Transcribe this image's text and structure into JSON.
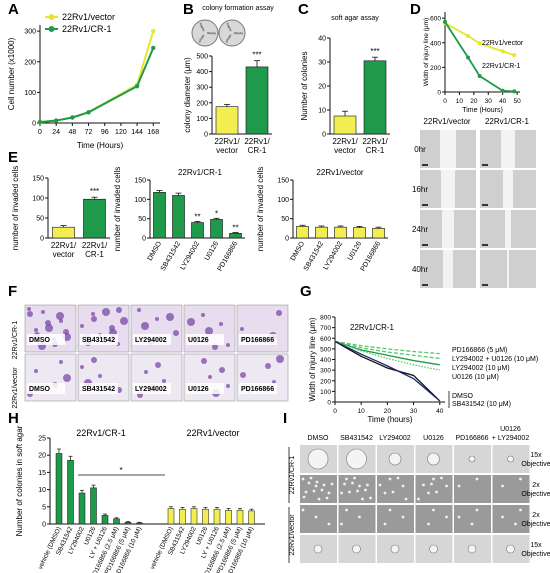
{
  "colors": {
    "yellow": "#f2ee52",
    "yellow_line": "#e8e430",
    "green": "#1f9a4a",
    "light_green": "#5cc66e",
    "dark_blue": "#1a2a6c",
    "black": "#111111",
    "purple_stain": "#7a4aa8",
    "purple_bg": "#e8dcef",
    "gray_bg": "#cfcfcf"
  },
  "panel_letters": [
    "A",
    "B",
    "C",
    "D",
    "E",
    "F",
    "G",
    "H",
    "I"
  ],
  "chart_data": [
    {
      "panel": "A",
      "type": "line",
      "xlabel": "Time (Hours)",
      "ylabel": "Cell number (x1000)",
      "xticks": [
        0,
        24,
        48,
        72,
        96,
        120,
        144,
        168
      ],
      "yticks": [
        0,
        100,
        200,
        300
      ],
      "xlim": [
        0,
        178
      ],
      "ylim": [
        0,
        320
      ],
      "series": [
        {
          "name": "22Rv1/vector",
          "color": "yellow",
          "x": [
            0,
            24,
            48,
            72,
            144,
            168
          ],
          "y": [
            3,
            8,
            18,
            35,
            125,
            300
          ]
        },
        {
          "name": "22Rv1/CR-1",
          "color": "green",
          "x": [
            0,
            24,
            48,
            72,
            144,
            168
          ],
          "y": [
            3,
            8,
            18,
            35,
            120,
            245
          ]
        }
      ]
    },
    {
      "panel": "B",
      "type": "bar",
      "title": "colony formation assay",
      "ylabel": "colony diameter (μm)",
      "yticks": [
        0,
        100,
        200,
        300,
        400,
        500
      ],
      "ylim": [
        0,
        500
      ],
      "categories": [
        "22Rv1/ vector",
        "22Rv1/ CR-1"
      ],
      "values": [
        175,
        430
      ],
      "errors": [
        15,
        40
      ],
      "colors": [
        "yellow",
        "green"
      ],
      "annotation": "***"
    },
    {
      "panel": "C",
      "type": "bar",
      "title": "soft agar assay",
      "ylabel": "Number of colonies",
      "yticks": [
        0,
        10,
        20,
        30,
        40
      ],
      "ylim": [
        0,
        40
      ],
      "categories": [
        "22Rv1/ vector",
        "22Rv1/ CR-1"
      ],
      "values": [
        7.5,
        30.5
      ],
      "errors": [
        2,
        1.5
      ],
      "colors": [
        "yellow",
        "green"
      ],
      "annotation": "***"
    },
    {
      "panel": "D",
      "type": "line",
      "xlabel": "Time (Hours)",
      "ylabel": "Width of injury line (μm)",
      "xticks": [
        0,
        10,
        20,
        30,
        40,
        50
      ],
      "yticks": [
        0,
        200,
        400,
        600
      ],
      "xlim": [
        0,
        52
      ],
      "ylim": [
        0,
        650
      ],
      "series": [
        {
          "name": "22Rv1/vector",
          "color": "yellow",
          "x": [
            0,
            16,
            24,
            40,
            48
          ],
          "y": [
            560,
            455,
            395,
            330,
            300
          ]
        },
        {
          "name": "22Rv1/CR-1",
          "color": "green",
          "x": [
            0,
            16,
            24,
            40,
            48
          ],
          "y": [
            570,
            280,
            130,
            10,
            5
          ]
        }
      ],
      "image_columns": [
        "22Rv1/vector",
        "22Rv1/CR-1"
      ],
      "image_rows": [
        "0hr",
        "16hr",
        "24hr",
        "40hr"
      ]
    },
    {
      "panel": "E1",
      "type": "bar",
      "ylabel": "number of invaded cells",
      "yticks": [
        0,
        50,
        100,
        150
      ],
      "ylim": [
        0,
        150
      ],
      "categories": [
        "22Rv1/ vector",
        "22Rv1/ CR-1"
      ],
      "values": [
        27,
        97
      ],
      "errors": [
        4,
        5
      ],
      "colors": [
        "yellow",
        "green"
      ],
      "annotation": "***"
    },
    {
      "panel": "E2",
      "type": "bar",
      "title": "22Rv1/CR-1",
      "ylabel": "number of invaded cells",
      "yticks": [
        0,
        50,
        100,
        150
      ],
      "ylim": [
        0,
        150
      ],
      "categories": [
        "DMSO",
        "SB431542",
        "LY294002",
        "U0126",
        "PD166866"
      ],
      "values": [
        118,
        110,
        40,
        48,
        12
      ],
      "errors": [
        5,
        6,
        3,
        3,
        2
      ],
      "annotations": [
        "",
        "",
        "**",
        "*",
        "**"
      ],
      "color": "green"
    },
    {
      "panel": "E3",
      "type": "bar",
      "title": "22Rv1/vector",
      "ylabel": "number of invaded cells",
      "yticks": [
        0,
        50,
        100,
        150
      ],
      "ylim": [
        0,
        150
      ],
      "categories": [
        "DMSO",
        "SB431542",
        "LY294002",
        "U0126",
        "PD166866"
      ],
      "values": [
        30,
        28,
        28,
        27,
        25
      ],
      "errors": [
        3,
        3,
        3,
        3,
        3
      ],
      "color": "yellow"
    },
    {
      "panel": "G",
      "type": "line",
      "title": "22Rv1/CR-1",
      "xlabel": "Time (hours)",
      "ylabel": "Width of injury line (μm)",
      "xticks": [
        0,
        10,
        20,
        30,
        40
      ],
      "yticks": [
        0,
        100,
        200,
        300,
        400,
        500,
        600,
        700,
        800
      ],
      "xlim": [
        0,
        42
      ],
      "ylim": [
        0,
        800
      ],
      "series": [
        {
          "name": "PD166866 (5 μM)",
          "color": "light_green",
          "dash": "dashed",
          "x": [
            0,
            10,
            20,
            30,
            40
          ],
          "y": [
            570,
            530,
            500,
            475,
            455
          ]
        },
        {
          "name": "LY294002 + U0126 (10 μM)",
          "color": "light_green",
          "dash": "dashed",
          "x": [
            0,
            10,
            20,
            30,
            40
          ],
          "y": [
            570,
            510,
            470,
            440,
            410
          ]
        },
        {
          "name": "LY294002 (10 μM)",
          "color": "green",
          "dash": "solid",
          "x": [
            0,
            10,
            20,
            30,
            40
          ],
          "y": [
            570,
            490,
            440,
            390,
            350
          ]
        },
        {
          "name": "U0126 (10 μM)",
          "color": "light_green",
          "dash": "dotted",
          "x": [
            0,
            10,
            20,
            30,
            40
          ],
          "y": [
            570,
            480,
            410,
            350,
            300
          ]
        },
        {
          "name": "DMSO",
          "color": "black",
          "dash": "solid",
          "x": [
            0,
            10,
            20,
            30,
            40
          ],
          "y": [
            570,
            430,
            320,
            250,
            10
          ]
        },
        {
          "name": "SB431542 (10 μM)",
          "color": "dark_blue",
          "dash": "solid",
          "x": [
            0,
            10,
            20,
            30,
            40
          ],
          "y": [
            570,
            450,
            340,
            220,
            10
          ]
        }
      ]
    },
    {
      "panel": "H",
      "type": "bar",
      "ylabel": "Number of colonies in soft agar",
      "yticks": [
        0,
        5,
        10,
        15,
        20,
        25
      ],
      "ylim": [
        0,
        25
      ],
      "groups": [
        {
          "title": "22Rv1/CR-1",
          "color": "green",
          "categories": [
            "vehicle (DMSO)",
            "SB431542",
            "LY294002",
            "U0126",
            "LY + U0126",
            "PD166866 (2.5 μM)",
            "PD166866 (5 μM)",
            "PD166866 (10 μM)"
          ],
          "values": [
            20.5,
            18.5,
            9,
            10.5,
            2.5,
            1.5,
            0.5,
            0.3
          ],
          "errors": [
            1.3,
            1.2,
            0.8,
            0.8,
            0.4,
            0.3,
            0.2,
            0.2
          ]
        },
        {
          "title": "22Rv1/vector",
          "color": "yellow",
          "categories": [
            "vehicle (DMSO)",
            "SB431542",
            "LY294002",
            "U0126",
            "LY + U0126",
            "PD166866 (2.5 μM)",
            "PD166866 (5 μM)",
            "PD166866 (10 μM)"
          ],
          "values": [
            4.5,
            4.3,
            4.5,
            4.3,
            4.3,
            4.0,
            4.0,
            3.8
          ],
          "errors": [
            0.5,
            0.5,
            0.5,
            0.5,
            0.5,
            0.5,
            0.5,
            0.5
          ]
        }
      ],
      "annotation": "*"
    }
  ],
  "panel_F": {
    "row_labels": [
      "22Rv1/CR-1",
      "22Rv1/vector"
    ],
    "columns": [
      "DMSO",
      "SB431542",
      "LY294002",
      "U0126",
      "PD166866"
    ]
  },
  "panel_I": {
    "columns": [
      "DMSO",
      "SB431542",
      "LY294002",
      "U0126",
      "PD166866",
      "U0126 + LY294002"
    ],
    "row_groups": [
      "22Rv1/CR-1",
      "22Rv1/vector"
    ],
    "objectives": [
      "15x Objective",
      "2x Objective",
      "2x Objective",
      "15x Objective"
    ]
  }
}
